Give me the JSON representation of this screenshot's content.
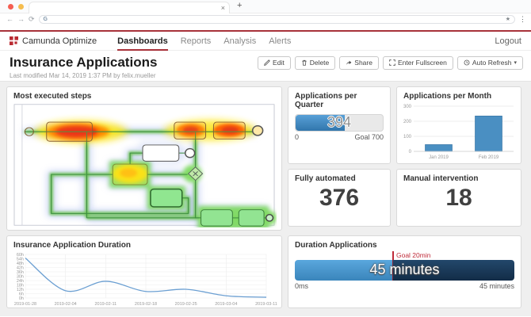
{
  "browser": {
    "close_tab": "×",
    "new_tab": "+",
    "back": "←",
    "forward": "→",
    "reload": "⟳",
    "favicon": "G",
    "bookmark_star": "★",
    "menu": "⋮"
  },
  "header": {
    "brand": "Camunda Optimize",
    "nav": [
      {
        "label": "Dashboards",
        "active": true
      },
      {
        "label": "Reports",
        "active": false
      },
      {
        "label": "Analysis",
        "active": false
      },
      {
        "label": "Alerts",
        "active": false
      }
    ],
    "logout": "Logout"
  },
  "titlebar": {
    "title": "Insurance Applications",
    "subtitle": "Last modified Mar 14, 2019 1:37 PM by felix.mueller",
    "buttons": [
      {
        "label": "Edit",
        "icon": "pencil-icon"
      },
      {
        "label": "Delete",
        "icon": "trash-icon"
      },
      {
        "label": "Share",
        "icon": "share-icon"
      },
      {
        "label": "Enter Fullscreen",
        "icon": "fullscreen-icon"
      },
      {
        "label": "Auto Refresh",
        "icon": "clock-icon",
        "caret": "▾"
      }
    ]
  },
  "panels": {
    "heatmap": {
      "title": "Most executed steps"
    }
  },
  "colors": {
    "brand_red": "#a8323a",
    "bar_blue": "#4a8fc2",
    "gauge_blue": "#3f87c1",
    "gauge_dark": "#16324f",
    "goal_red": "#bf2b3a"
  },
  "chart_data": [
    {
      "id": "applications_per_quarter",
      "type": "progress",
      "title": "Applications per Quarter",
      "value": 394,
      "max": 700,
      "min_label": "0",
      "goal_label": "Goal 700"
    },
    {
      "id": "applications_per_month",
      "type": "bar",
      "title": "Applications per Month",
      "categories": [
        "Jan 2019",
        "Feb 2019"
      ],
      "values": [
        45,
        235
      ],
      "yticks": [
        0,
        100,
        200,
        300
      ],
      "ylim": [
        0,
        300
      ]
    },
    {
      "id": "fully_automated",
      "type": "number",
      "title": "Fully automated",
      "value": 376
    },
    {
      "id": "manual_intervention",
      "type": "number",
      "title": "Manual intervention",
      "value": 18
    },
    {
      "id": "insurance_application_duration",
      "type": "line",
      "title": "Insurance Application Duration",
      "x": [
        "2019-01-28",
        "2019-02-04",
        "2019-02-11",
        "2019-02-18",
        "2019-02-25",
        "2019-03-04",
        "2019-03-11"
      ],
      "values_hours": [
        55,
        10,
        23,
        9,
        12,
        3,
        1
      ],
      "ytick_step_hours": 6,
      "ytick_labels": [
        "0h",
        "6h",
        "12h",
        "18h",
        "24h",
        "30h",
        "36h",
        "42h",
        "48h",
        "54h",
        "60h"
      ],
      "ylim_hours": [
        0,
        60
      ],
      "grid": true,
      "legend": "none"
    },
    {
      "id": "duration_applications",
      "type": "progress",
      "title": "Duration Applications",
      "value_label": "45 minutes",
      "value_minutes": 45,
      "goal_minutes": 20,
      "max_minutes": 45,
      "min_label": "0ms",
      "max_label": "45 minutes",
      "goal_label": "Goal 20min"
    }
  ]
}
